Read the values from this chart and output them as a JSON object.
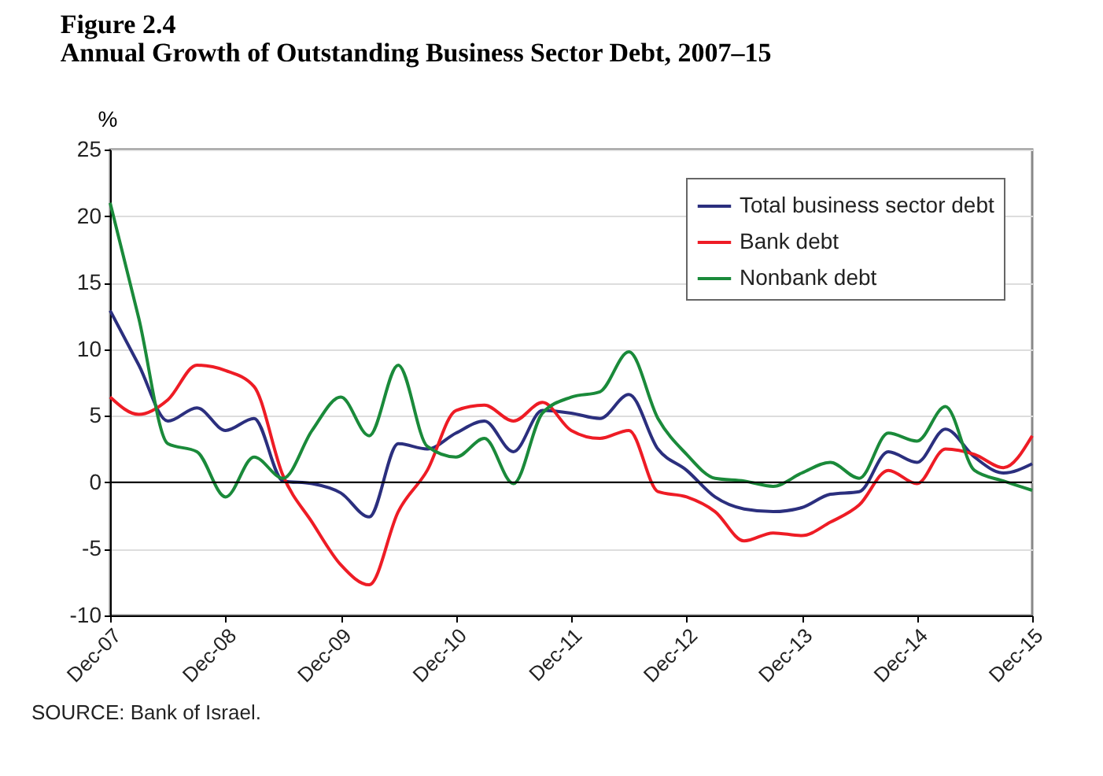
{
  "chart_data": {
    "type": "line",
    "title": "Figure 2.4",
    "subtitle": "Annual Growth of Outstanding Business Sector Debt, 2007–15",
    "ylabel": "%",
    "x": [
      "2007-12",
      "2008-03",
      "2008-06",
      "2008-09",
      "2008-12",
      "2009-03",
      "2009-06",
      "2009-09",
      "2009-12",
      "2010-03",
      "2010-06",
      "2010-09",
      "2010-12",
      "2011-03",
      "2011-06",
      "2011-09",
      "2011-12",
      "2012-03",
      "2012-06",
      "2012-09",
      "2012-12",
      "2013-03",
      "2013-06",
      "2013-09",
      "2013-12",
      "2014-03",
      "2014-06",
      "2014-09",
      "2014-12",
      "2015-03",
      "2015-06",
      "2015-09",
      "2015-12"
    ],
    "series": [
      {
        "name": "Total business sector debt",
        "color": "#2b2f7e",
        "values": [
          12.9,
          8.8,
          4.6,
          5.6,
          3.9,
          4.8,
          0.1,
          -0.1,
          -0.8,
          -2.6,
          2.9,
          2.5,
          3.7,
          4.6,
          2.3,
          5.4,
          5.2,
          4.8,
          6.6,
          2.5,
          0.9,
          -1.1,
          -2.0,
          -2.2,
          -1.9,
          -0.9,
          -0.7,
          2.3,
          1.5,
          4.0,
          1.9,
          0.7,
          1.4
        ]
      },
      {
        "name": "Bank debt",
        "color": "#ee1c25",
        "values": [
          6.4,
          5.1,
          6.2,
          8.8,
          8.4,
          7.2,
          0.5,
          -3.0,
          -6.2,
          -7.7,
          -2.2,
          0.9,
          5.4,
          5.8,
          4.6,
          6.0,
          3.9,
          3.3,
          3.9,
          -0.7,
          -1.1,
          -2.2,
          -4.4,
          -3.8,
          -4.0,
          -3.0,
          -1.7,
          0.9,
          -0.1,
          2.5,
          2.1,
          1.1,
          3.5
        ]
      },
      {
        "name": "Nonbank debt",
        "color": "#1a8a3a",
        "values": [
          21.0,
          12.3,
          2.9,
          2.3,
          -1.1,
          1.9,
          0.3,
          3.9,
          6.4,
          3.5,
          8.8,
          2.7,
          1.9,
          3.3,
          -0.1,
          5.2,
          6.4,
          6.8,
          9.8,
          4.8,
          2.1,
          0.3,
          0.1,
          -0.3,
          0.7,
          1.5,
          0.3,
          3.7,
          3.1,
          5.7,
          0.9,
          0.1,
          -0.6
        ]
      }
    ],
    "xlim": [
      "2007-12",
      "2015-12"
    ],
    "xticks": [
      {
        "value": "2007-12",
        "label": "Dec-07"
      },
      {
        "value": "2008-12",
        "label": "Dec-08"
      },
      {
        "value": "2009-12",
        "label": "Dec-09"
      },
      {
        "value": "2010-12",
        "label": "Dec-10"
      },
      {
        "value": "2011-12",
        "label": "Dec-11"
      },
      {
        "value": "2012-12",
        "label": "Dec-12"
      },
      {
        "value": "2013-12",
        "label": "Dec-13"
      },
      {
        "value": "2014-12",
        "label": "Dec-14"
      },
      {
        "value": "2015-12",
        "label": "Dec-15"
      }
    ],
    "ylim": [
      -10,
      25
    ],
    "yticks": [
      -10,
      -5,
      0,
      5,
      10,
      15,
      20,
      25
    ],
    "ref_lines": [
      {
        "axis": "y",
        "value": 0,
        "color": "#000000"
      }
    ],
    "grid": "y",
    "legend": "top right",
    "marker": "none",
    "line_style": "solid",
    "annotations": [
      "SOURCE:  Bank of Israel."
    ]
  }
}
